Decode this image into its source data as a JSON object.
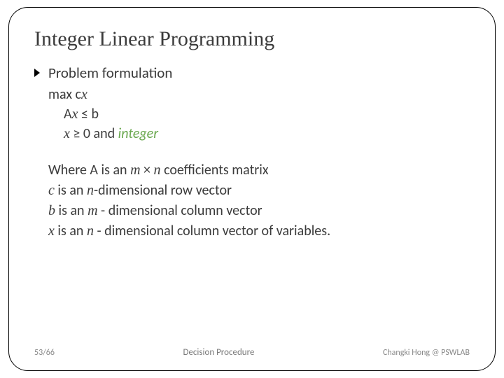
{
  "title": "Integer Linear Programming",
  "bullet": {
    "label": "Problem formulation"
  },
  "formulation": {
    "line1_pre": "max c",
    "line1_var": "x",
    "line2_pre": "A",
    "line2_var": "x",
    "line2_rel": " ≤ b",
    "line3_var": "x",
    "line3_rel": " ≥ 0 and ",
    "line3_emph": "integer"
  },
  "explain": {
    "l1_a": "Where A is an ",
    "l1_b": "m",
    "l1_c": " × ",
    "l1_d": "n",
    "l1_e": " coefficients matrix",
    "l2_a": "c",
    "l2_b": " is an ",
    "l2_c": "n",
    "l2_d": "-dimensional row vector",
    "l3_a": "b",
    "l3_b": " is an ",
    "l3_c": "m",
    "l3_d": " - dimensional column vector",
    "l4_a": "x",
    "l4_b": " is an ",
    "l4_c": "n",
    "l4_d": " - dimensional column vector  of variables."
  },
  "footer": {
    "page": "53/66",
    "center": "Decision Procedure",
    "author": "Changki Hong @ PSWLAB"
  },
  "colors": {
    "text": "#3b3b3b",
    "border": "#000000",
    "emph": "#6aa84f",
    "footer": "#888888",
    "background": "#ffffff"
  }
}
